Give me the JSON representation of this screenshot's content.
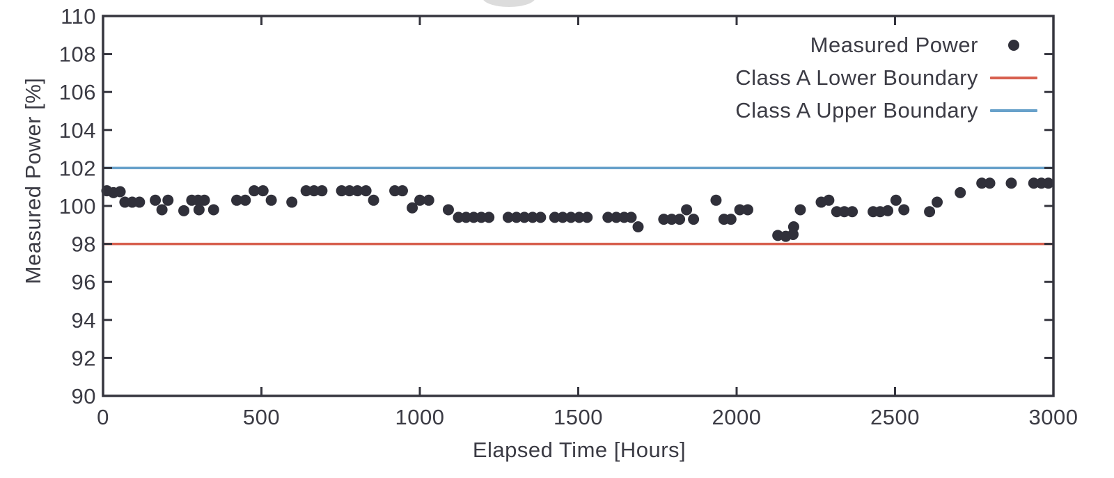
{
  "chart_data": {
    "type": "scatter",
    "title": "",
    "xlabel": "Elapsed Time [Hours]",
    "ylabel": "Measured Power [%]",
    "xlim": [
      0,
      3000
    ],
    "ylim": [
      90,
      110
    ],
    "xticks": [
      0,
      500,
      1000,
      1500,
      2000,
      2500,
      3000
    ],
    "yticks": [
      90,
      92,
      94,
      96,
      98,
      100,
      102,
      104,
      106,
      108,
      110
    ],
    "grid": false,
    "legend_position": "top-right-inside",
    "series": [
      {
        "name": "Measured Power",
        "kind": "scatter",
        "marker": "filled-circle",
        "color": "#30303a",
        "points": [
          [
            12,
            100.8
          ],
          [
            33,
            100.7
          ],
          [
            54,
            100.75
          ],
          [
            69,
            100.2
          ],
          [
            92,
            100.2
          ],
          [
            115,
            100.2
          ],
          [
            165,
            100.3
          ],
          [
            186,
            99.8
          ],
          [
            205,
            100.3
          ],
          [
            255,
            99.75
          ],
          [
            280,
            100.3
          ],
          [
            300,
            100.3
          ],
          [
            320,
            100.3
          ],
          [
            303,
            99.8
          ],
          [
            349,
            99.8
          ],
          [
            422,
            100.3
          ],
          [
            449,
            100.3
          ],
          [
            477,
            100.8
          ],
          [
            505,
            100.8
          ],
          [
            531,
            100.3
          ],
          [
            596,
            100.2
          ],
          [
            641,
            100.8
          ],
          [
            666,
            100.8
          ],
          [
            691,
            100.8
          ],
          [
            753,
            100.8
          ],
          [
            778,
            100.8
          ],
          [
            803,
            100.8
          ],
          [
            830,
            100.8
          ],
          [
            854,
            100.3
          ],
          [
            921,
            100.8
          ],
          [
            945,
            100.8
          ],
          [
            976,
            99.9
          ],
          [
            1000,
            100.3
          ],
          [
            1028,
            100.3
          ],
          [
            1090,
            99.8
          ],
          [
            1122,
            99.4
          ],
          [
            1146,
            99.4
          ],
          [
            1170,
            99.4
          ],
          [
            1194,
            99.4
          ],
          [
            1218,
            99.4
          ],
          [
            1279,
            99.4
          ],
          [
            1305,
            99.4
          ],
          [
            1330,
            99.4
          ],
          [
            1356,
            99.4
          ],
          [
            1381,
            99.4
          ],
          [
            1426,
            99.4
          ],
          [
            1451,
            99.4
          ],
          [
            1477,
            99.4
          ],
          [
            1503,
            99.4
          ],
          [
            1528,
            99.4
          ],
          [
            1594,
            99.4
          ],
          [
            1620,
            99.4
          ],
          [
            1645,
            99.4
          ],
          [
            1667,
            99.4
          ],
          [
            1689,
            98.9
          ],
          [
            1770,
            99.3
          ],
          [
            1795,
            99.3
          ],
          [
            1820,
            99.3
          ],
          [
            1842,
            99.8
          ],
          [
            1864,
            99.3
          ],
          [
            1935,
            100.3
          ],
          [
            1960,
            99.3
          ],
          [
            1982,
            99.3
          ],
          [
            2010,
            99.8
          ],
          [
            2035,
            99.8
          ],
          [
            2130,
            98.45
          ],
          [
            2155,
            98.4
          ],
          [
            2178,
            98.5
          ],
          [
            2180,
            98.9
          ],
          [
            2201,
            99.8
          ],
          [
            2267,
            100.2
          ],
          [
            2291,
            100.3
          ],
          [
            2316,
            99.7
          ],
          [
            2340,
            99.7
          ],
          [
            2365,
            99.7
          ],
          [
            2431,
            99.7
          ],
          [
            2453,
            99.7
          ],
          [
            2477,
            99.75
          ],
          [
            2503,
            100.3
          ],
          [
            2528,
            99.8
          ],
          [
            2609,
            99.7
          ],
          [
            2633,
            100.2
          ],
          [
            2706,
            100.7
          ],
          [
            2774,
            101.2
          ],
          [
            2799,
            101.2
          ],
          [
            2867,
            101.2
          ],
          [
            2938,
            101.2
          ],
          [
            2962,
            101.2
          ],
          [
            2984,
            101.2
          ]
        ]
      },
      {
        "name": "Class A Lower Boundary",
        "kind": "hline",
        "y": 98,
        "color": "#d7604f"
      },
      {
        "name": "Class A Upper Boundary",
        "kind": "hline",
        "y": 102,
        "color": "#68a1ca"
      }
    ]
  },
  "style": {
    "text_color": "#3b3b44",
    "frame_color": "#35353e",
    "background": "#ffffff",
    "watermark_color": "#c9c9c9"
  }
}
